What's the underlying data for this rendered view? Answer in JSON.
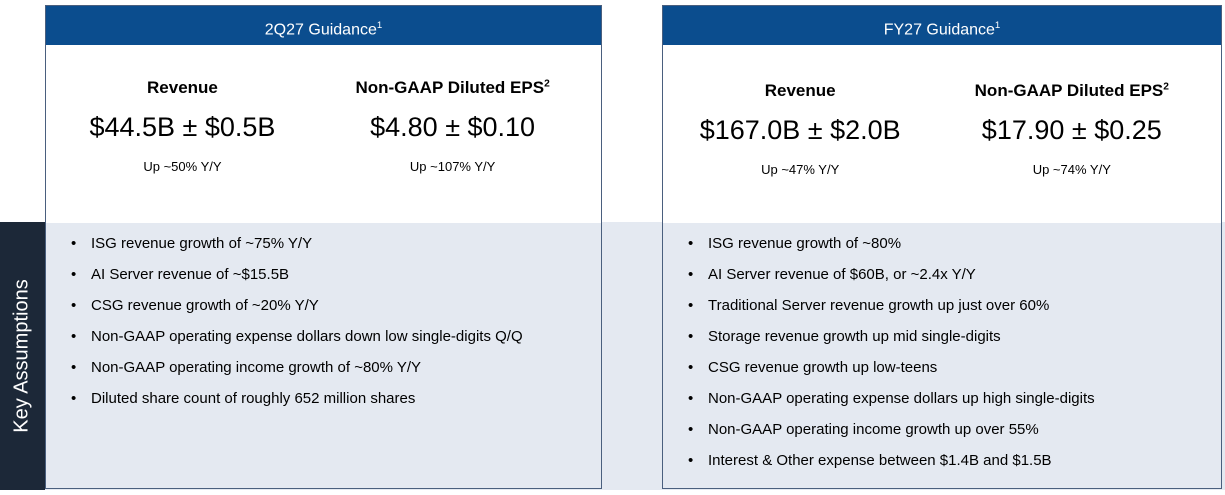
{
  "side_label": "Key Assumptions",
  "panels": [
    {
      "title": "2Q27 Guidance",
      "title_note": "1",
      "metrics": [
        {
          "label": "Revenue",
          "value": "$44.5B ± $0.5B",
          "change": "Up ~50% Y/Y"
        },
        {
          "label": "Non-GAAP Diluted EPS",
          "label_note": "2",
          "value": "$4.80 ± $0.10",
          "change": "Up ~107% Y/Y"
        }
      ],
      "bullets": [
        "ISG revenue growth of ~75% Y/Y",
        "AI Server revenue of ~$15.5B",
        "CSG revenue growth of ~20% Y/Y",
        "Non-GAAP operating expense dollars down low single-digits Q/Q",
        "Non-GAAP operating income growth of ~80% Y/Y",
        "Diluted share count of roughly 652 million shares"
      ]
    },
    {
      "title": "FY27 Guidance",
      "title_note": "1",
      "metrics": [
        {
          "label": "Revenue",
          "value": "$167.0B ± $2.0B",
          "change": "Up ~47% Y/Y"
        },
        {
          "label": "Non-GAAP Diluted EPS",
          "label_note": "2",
          "value": "$17.90 ± $0.25",
          "change": "Up ~74% Y/Y"
        }
      ],
      "bullets": [
        "ISG revenue growth of ~80%",
        "AI Server revenue of $60B, or ~2.4x Y/Y",
        "Traditional Server revenue growth up just over 60%",
        "Storage revenue growth up mid single-digits",
        "CSG revenue growth up low-teens",
        "Non-GAAP operating expense dollars up high single-digits",
        "Non-GAAP operating income growth up over 55%",
        "Interest & Other expense between $1.4B and $1.5B"
      ]
    }
  ]
}
